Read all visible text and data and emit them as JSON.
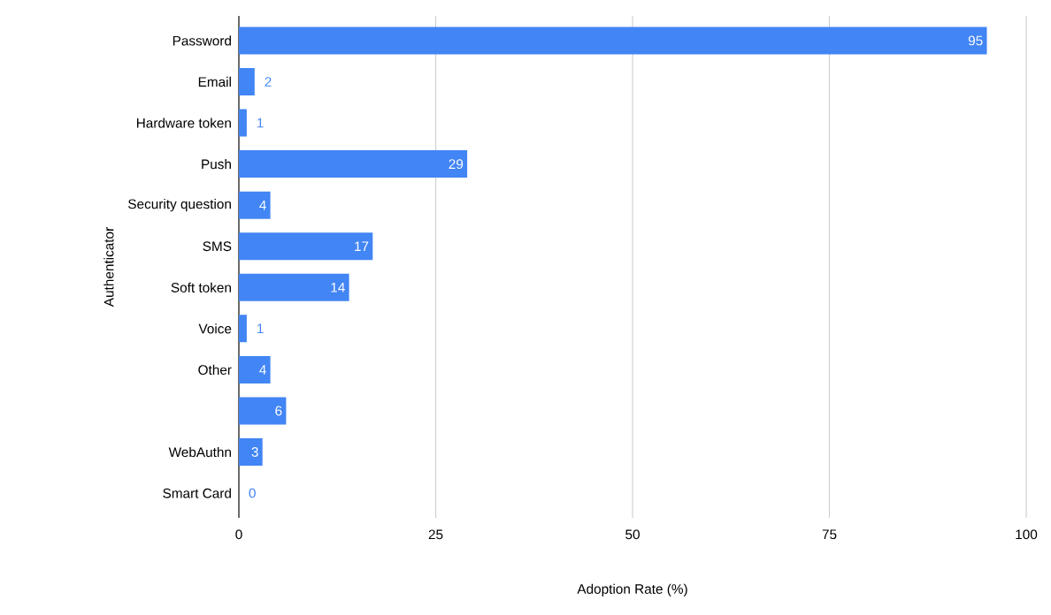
{
  "chart_data": {
    "type": "bar",
    "orientation": "horizontal",
    "categories": [
      "Password",
      "Email",
      "Hardware token",
      "Push",
      "Security question",
      "SMS",
      "Soft token",
      "Voice",
      "Other",
      null,
      "WebAuthn",
      "Smart Card"
    ],
    "values": [
      95,
      2,
      1,
      29,
      4,
      17,
      14,
      1,
      4,
      6,
      3,
      0
    ],
    "color": "#4285f4",
    "xlim": [
      0,
      100
    ],
    "xticks": [
      0,
      25,
      50,
      75,
      100
    ],
    "xlabel": "Adoption Rate (%)",
    "ylabel": "Authenticator",
    "grid": "x",
    "data_labels": true
  }
}
